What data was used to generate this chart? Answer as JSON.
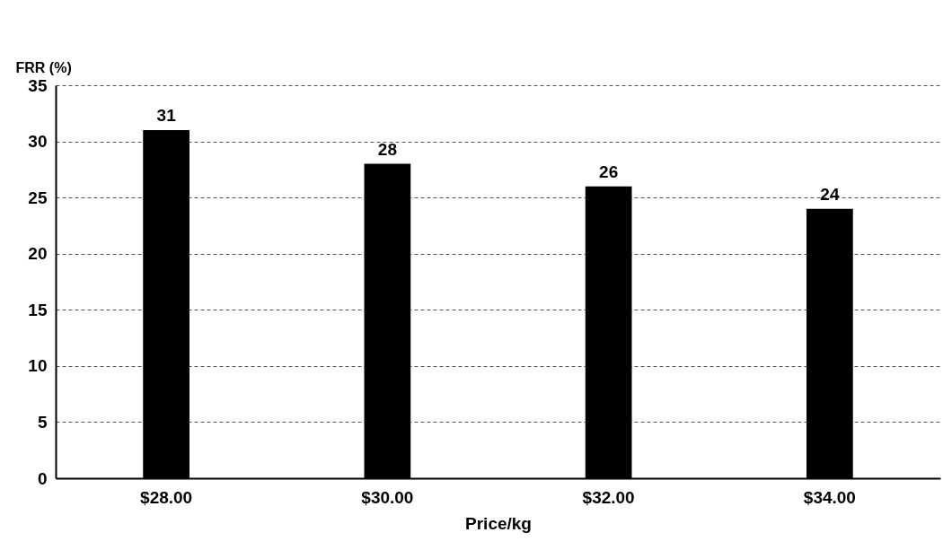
{
  "chart_data": {
    "type": "bar",
    "xlabel": "Price/kg",
    "ylabel": "FRR (%)",
    "categories": [
      "$28.00",
      "$30.00",
      "$32.00",
      "$34.00"
    ],
    "values": [
      31,
      28,
      26,
      24
    ],
    "color": "#000000",
    "ylim": [
      0,
      35
    ],
    "yticks": [
      0,
      5,
      10,
      15,
      20,
      25,
      30,
      35
    ],
    "grid": "y",
    "data_labels": true
  }
}
